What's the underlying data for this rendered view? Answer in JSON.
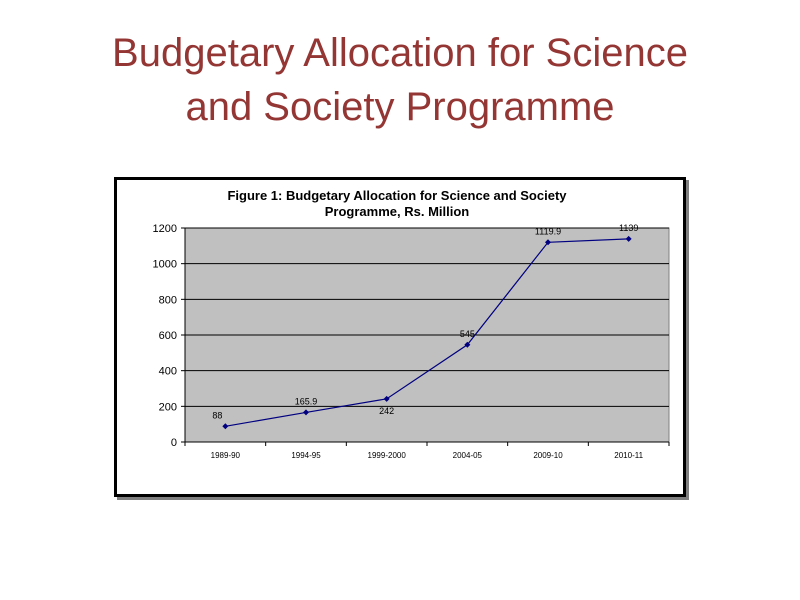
{
  "slide": {
    "title_line1": "Budgetary Allocation for Science",
    "title_line2": "and Society Programme",
    "title_color": "#943634"
  },
  "chart_data": {
    "type": "line",
    "title_line1": "Figure 1: Budgetary Allocation for Science and Society",
    "title_line2": "Programme, Rs. Million",
    "categories": [
      "1989-90",
      "1994-95",
      "1999-2000",
      "2004-05",
      "2009-10",
      "2010-11"
    ],
    "series": [
      {
        "values": [
          88,
          165.9,
          242,
          545,
          1119.9,
          1139
        ],
        "data_labels": [
          "88",
          "165.9",
          "242",
          "545",
          "1119.9",
          "1139"
        ],
        "color": "#000080"
      }
    ],
    "ylim": [
      0,
      1200
    ],
    "yticks": [
      0,
      200,
      400,
      600,
      800,
      1000,
      1200
    ],
    "grid": true,
    "plot_background": "#c0c0c0",
    "legend": "none"
  }
}
